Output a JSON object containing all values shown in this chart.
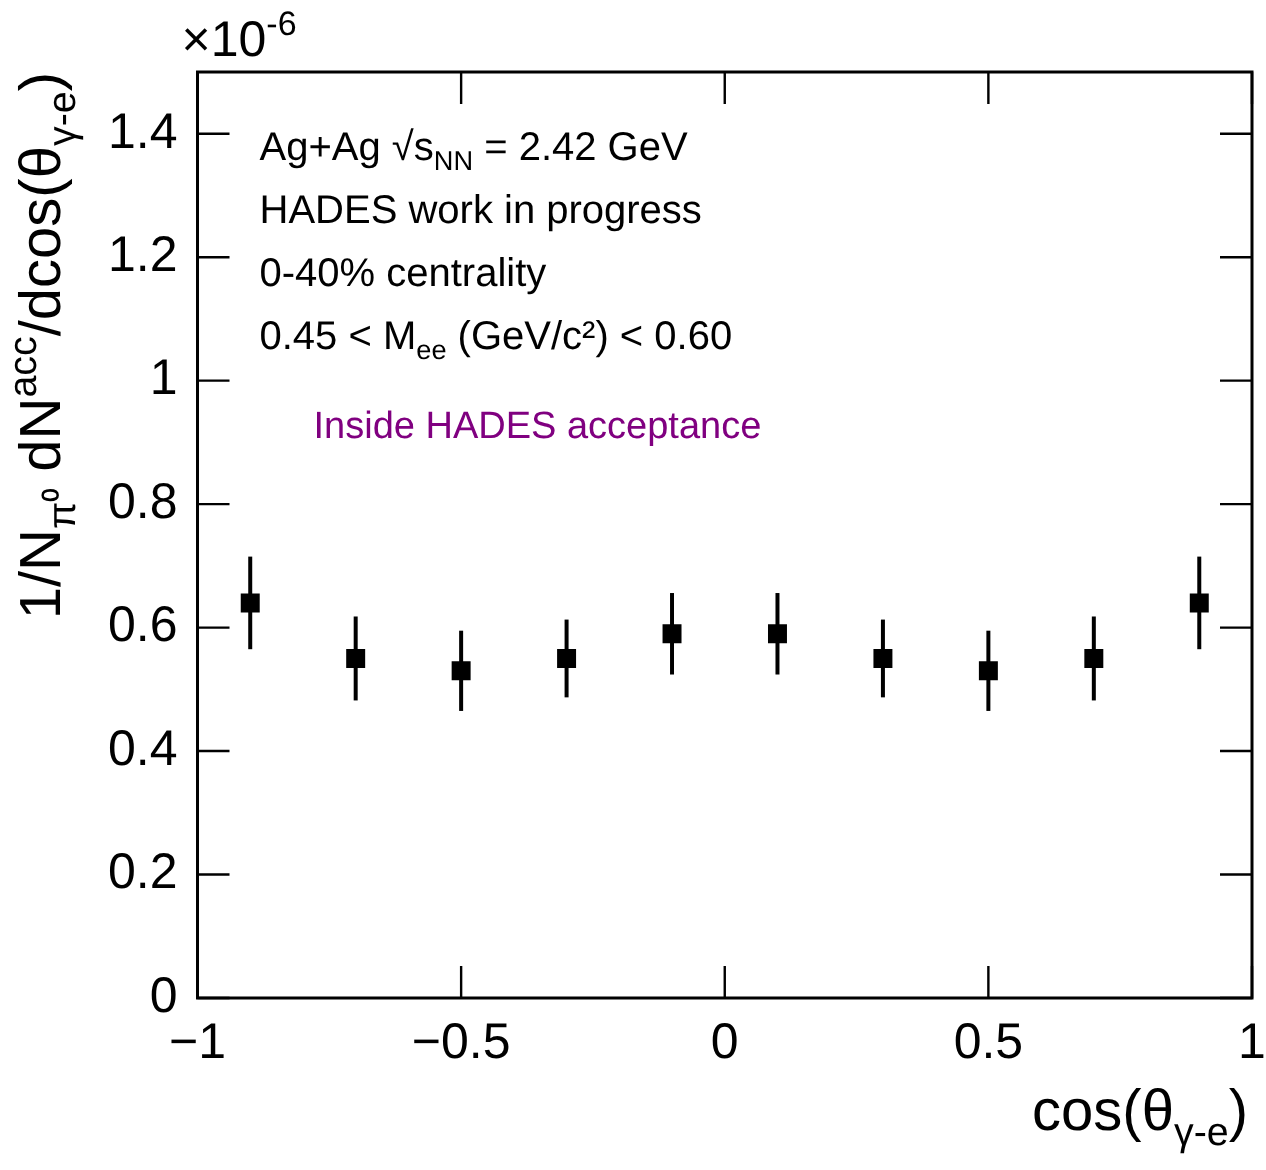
{
  "chart_data": {
    "type": "scatter",
    "xlabel": "cos(θ$_{γ-e}$)",
    "ylabel": "1/N$_{π⁰}$ dN$^{acc}$/dcos(θ$_{γ-e}$)",
    "annotations": [
      "×10$^{-6}$",
      "Ag+Ag √s$_{NN}$ = 2.42 GeV",
      "HADES work in progress",
      "0-40% centrality",
      "0.45 < M$_{ee}$ (GeV/c²) < 0.60",
      "Inside HADES acceptance"
    ],
    "x": [
      -0.9,
      -0.7,
      -0.5,
      -0.3,
      -0.1,
      0.1,
      0.3,
      0.5,
      0.7,
      0.9
    ],
    "series": [
      {
        "color": "#000000",
        "values": [
          0.64,
          0.55,
          0.53,
          0.55,
          0.59,
          0.59,
          0.55,
          0.53,
          0.55,
          0.64
        ],
        "errors": [
          0.075,
          0.068,
          0.065,
          0.063,
          0.066,
          0.066,
          0.063,
          0.065,
          0.068,
          0.075
        ]
      }
    ],
    "xlim": [
      -1,
      1
    ],
    "xticks": [
      -1,
      -0.5,
      0,
      0.5,
      1
    ],
    "ylim": [
      0,
      1.5
    ],
    "yticks": [
      0,
      0.2,
      0.4,
      0.6,
      0.8,
      1,
      1.2,
      1.4
    ],
    "marker": "square",
    "grid": false,
    "legend": false
  }
}
